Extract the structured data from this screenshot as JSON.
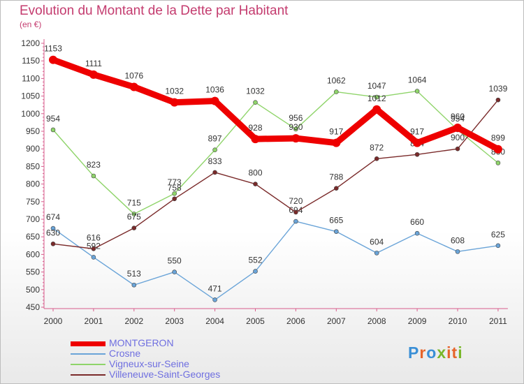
{
  "title": "Evolution du Montant de la Dette par Habitant",
  "subtitle": "(en €)",
  "logo": {
    "text": "Proxiti",
    "colors": [
      "#3a8fd6",
      "#e6642a",
      "#3a8fd6",
      "#79b72a",
      "#e6642a",
      "#e6642a",
      "#79b72a"
    ]
  },
  "chart_data": {
    "type": "line",
    "title": "Evolution du Montant de la Dette par Habitant",
    "ylabel": "(en €)",
    "x": [
      "2000",
      "2001",
      "2002",
      "2003",
      "2004",
      "2005",
      "2006",
      "2007",
      "2008",
      "2009",
      "2010",
      "2011"
    ],
    "ylim": [
      450,
      1200
    ],
    "yticks": [
      450,
      500,
      550,
      600,
      650,
      700,
      750,
      800,
      850,
      900,
      950,
      1000,
      1050,
      1100,
      1150,
      1200
    ],
    "grid": false,
    "legend_position": "bottom-left",
    "series": [
      {
        "name": "MONTGERON",
        "color": "#ee0000",
        "width": "thick",
        "values": [
          1153,
          1111,
          1076,
          1032,
          1036,
          928,
          930,
          917,
          1012,
          917,
          960,
          899
        ]
      },
      {
        "name": "Crosne",
        "color": "#6aa4d8",
        "width": "thin",
        "values": [
          674,
          592,
          513,
          550,
          471,
          552,
          694,
          665,
          604,
          660,
          608,
          625
        ]
      },
      {
        "name": "Vigneux-sur-Seine",
        "color": "#8fd46a",
        "width": "thin",
        "values": [
          954,
          823,
          715,
          773,
          897,
          1032,
          956,
          1062,
          1047,
          1064,
          954,
          860
        ]
      },
      {
        "name": "Villeneuve-Saint-Georges",
        "color": "#7a2a2a",
        "width": "thin",
        "values": [
          630,
          616,
          675,
          758,
          833,
          800,
          720,
          788,
          872,
          884,
          900,
          1039
        ]
      }
    ]
  }
}
